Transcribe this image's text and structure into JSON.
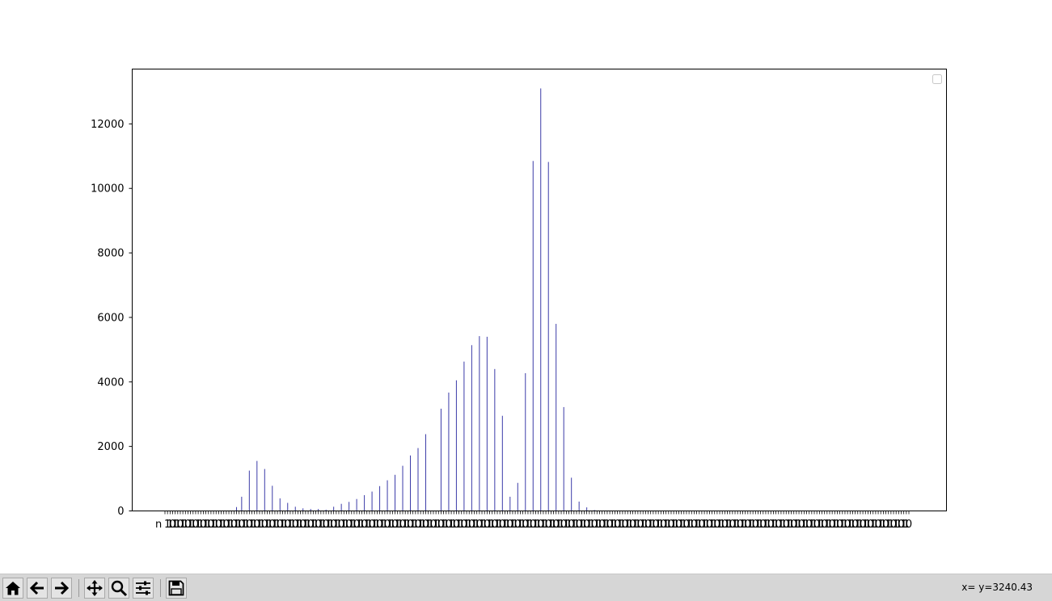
{
  "window": {
    "toolbar": {
      "buttons": [
        {
          "name": "home-button",
          "icon": "home-icon"
        },
        {
          "name": "back-button",
          "icon": "arrow-left-icon"
        },
        {
          "name": "forward-button",
          "icon": "arrow-right-icon"
        },
        {
          "name": "pan-button",
          "icon": "move-arrows-icon"
        },
        {
          "name": "zoom-button",
          "icon": "magnifier-icon"
        },
        {
          "name": "configure-subplots-button",
          "icon": "sliders-icon"
        },
        {
          "name": "save-button",
          "icon": "floppy-disk-icon"
        }
      ],
      "coords": "x= y=3240.43"
    }
  },
  "chart_data": {
    "type": "bar",
    "bar_color": "#3b3ba8",
    "xlabel": "",
    "ylabel": "",
    "ylim": [
      0,
      13700
    ],
    "y_ticks": [
      0,
      2000,
      4000,
      6000,
      8000,
      10000,
      12000
    ],
    "x_first_label": "n",
    "x_category_count": 256,
    "x_label_note": "256 category tick labels drawn overlapping and illegible; first label begins with 'n', last labels end in '0'",
    "values": [
      0,
      0,
      0,
      0,
      0,
      0,
      0,
      0,
      0,
      0,
      0,
      0,
      0,
      0,
      0,
      0,
      0,
      0,
      0,
      0,
      0,
      0,
      0,
      0,
      0,
      0,
      0,
      0,
      120,
      0,
      440,
      0,
      0,
      1250,
      0,
      0,
      1550,
      0,
      0,
      1300,
      0,
      0,
      780,
      0,
      0,
      390,
      0,
      0,
      250,
      0,
      0,
      130,
      0,
      0,
      80,
      0,
      0,
      60,
      0,
      0,
      60,
      0,
      0,
      40,
      0,
      0,
      130,
      0,
      0,
      220,
      0,
      0,
      280,
      0,
      0,
      370,
      0,
      0,
      490,
      0,
      0,
      600,
      0,
      0,
      770,
      0,
      0,
      950,
      0,
      0,
      1120,
      0,
      0,
      1400,
      0,
      0,
      1720,
      0,
      0,
      1950,
      0,
      0,
      2380,
      0,
      0,
      0,
      0,
      0,
      3170,
      0,
      0,
      3670,
      0,
      0,
      4050,
      0,
      0,
      4630,
      0,
      0,
      5140,
      0,
      0,
      5420,
      0,
      0,
      5400,
      0,
      0,
      4400,
      0,
      0,
      2950,
      0,
      0,
      440,
      0,
      0,
      870,
      0,
      0,
      4270,
      0,
      0,
      10850,
      0,
      0,
      13100,
      0,
      0,
      10820,
      0,
      0,
      5800,
      0,
      0,
      3220,
      0,
      0,
      1030,
      0,
      0,
      290,
      0,
      0,
      110,
      0,
      0,
      30,
      0,
      0,
      0,
      0,
      0,
      0,
      0,
      0,
      0,
      0,
      0,
      0,
      0,
      0,
      0,
      0,
      0,
      0,
      0,
      0,
      0,
      0,
      0,
      0,
      0,
      0,
      0,
      0,
      0,
      0,
      0,
      0,
      0,
      0,
      0,
      0,
      0,
      0,
      0,
      0,
      0,
      0,
      0,
      0,
      0,
      0,
      0,
      0,
      0,
      0,
      0,
      0,
      0,
      0,
      0,
      0,
      0,
      0,
      0,
      0,
      0,
      0,
      0,
      0,
      0,
      0,
      0,
      0,
      0,
      0,
      0,
      0,
      0,
      0,
      0,
      0,
      0,
      0,
      0,
      0,
      0,
      0,
      0,
      0,
      0,
      0,
      0,
      0,
      0,
      0,
      0,
      0,
      0,
      0,
      0,
      0,
      0,
      0,
      0,
      0,
      0,
      0,
      0,
      0,
      0,
      0,
      0,
      0,
      0,
      0,
      0,
      0,
      0,
      0,
      0,
      0,
      0,
      0,
      0,
      0,
      0,
      0,
      0
    ],
    "legend": {
      "position": "top-right",
      "entries": []
    },
    "grid": false
  }
}
